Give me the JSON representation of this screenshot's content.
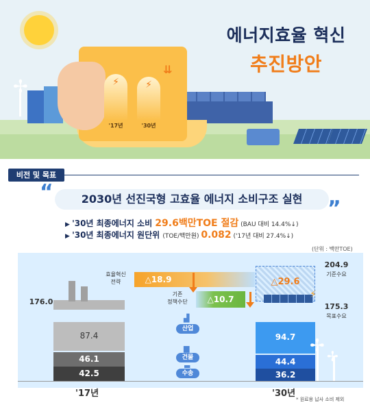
{
  "header": {
    "title_line1": "에너지효율 혁신",
    "title_line2": "추진방안",
    "bar_label_17": "'17년",
    "bar_label_30": "'30년"
  },
  "section": {
    "tag": "비전 및 목표",
    "vision": "2030년 선진국형 고효율 에너지 소비구조 실현"
  },
  "goals": [
    {
      "prefix": "'30년 최종에너지 소비 ",
      "highlight": "29.6백만TOE 절감",
      "note": " (BAU 대비 14.4%↓)"
    },
    {
      "prefix": "'30년 최종에너지 원단위 ",
      "mid": "(TOE/백만원) ",
      "highlight": "0.082",
      "note": " ('17년 대비 27.4%↓)"
    }
  ],
  "chart_data": {
    "type": "bar",
    "unit": "(단위 : 백만TOE)",
    "categories": [
      "'17년",
      "'30년"
    ],
    "series": [
      {
        "name": "수송",
        "values": [
          42.5,
          36.2
        ]
      },
      {
        "name": "건물",
        "values": [
          46.1,
          44.4
        ]
      },
      {
        "name": "산업",
        "values": [
          87.4,
          94.7
        ]
      }
    ],
    "totals": {
      "17": "176.0",
      "30_base": "204.9",
      "30_target": "175.3"
    },
    "base_label": "기준수요",
    "target_label": "목표수요",
    "reductions": [
      {
        "label_line1": "효율혁신",
        "label_line2": "전략",
        "value": "△18.9"
      },
      {
        "label_line1": "기존",
        "label_line2": "정책수단",
        "value": "△10.7"
      }
    ],
    "total_reduction": "△29.6",
    "note": "* 원료용 납사 소비 제외"
  },
  "colors": {
    "navy": "#1b2e5a",
    "orange": "#f07d1a",
    "blue_bar": "#2a6fd6",
    "gray_bar": "#8f8f8f",
    "green": "#7cc14e"
  }
}
